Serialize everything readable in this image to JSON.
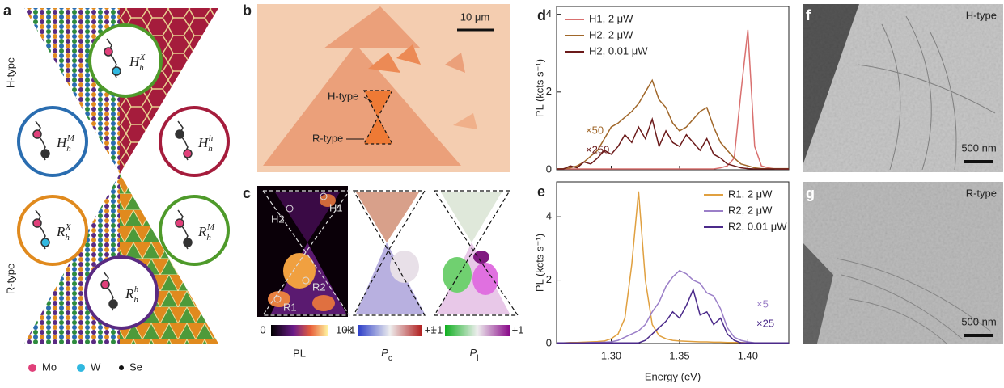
{
  "panel_labels": [
    "a",
    "b",
    "c",
    "d",
    "e",
    "f",
    "g"
  ],
  "panel_a": {
    "side_labels": [
      "H-type",
      "R-type"
    ],
    "stackings": [
      {
        "base": "H",
        "sub": "h",
        "sup": "X"
      },
      {
        "base": "H",
        "sub": "h",
        "sup": "M"
      },
      {
        "base": "H",
        "sub": "h",
        "sup": "h"
      },
      {
        "base": "R",
        "sub": "h",
        "sup": "X"
      },
      {
        "base": "R",
        "sub": "h",
        "sup": "M"
      },
      {
        "base": "R",
        "sub": "h",
        "sup": "h"
      }
    ],
    "legend": [
      "Mo",
      "W",
      "Se"
    ]
  },
  "panel_b": {
    "scale_bar": "10 μm",
    "labels": [
      "H-type",
      "R-type"
    ]
  },
  "panel_c": {
    "point_labels": [
      "H2",
      "H1",
      "R2",
      "R1"
    ],
    "colorbars": [
      {
        "min": "0",
        "max": "10k",
        "label": "PL"
      },
      {
        "min": "−1",
        "max": "+1",
        "label": "P",
        "sub": "c"
      },
      {
        "min": "−1",
        "max": "+1",
        "label": "P",
        "sub": "l"
      }
    ]
  },
  "panel_f": {
    "label": "H-type",
    "scale_bar": "500 nm"
  },
  "panel_g": {
    "label": "R-type",
    "scale_bar": "500 nm"
  },
  "chart_data": [
    {
      "type": "line",
      "ylabel": "PL (kcts s⁻¹)",
      "legend": "upper left",
      "xtick_labels": false,
      "x": [
        1.26,
        1.265,
        1.27,
        1.275,
        1.28,
        1.285,
        1.29,
        1.295,
        1.3,
        1.305,
        1.31,
        1.315,
        1.32,
        1.325,
        1.33,
        1.335,
        1.34,
        1.345,
        1.35,
        1.355,
        1.36,
        1.365,
        1.37,
        1.375,
        1.38,
        1.385,
        1.39,
        1.395,
        1.4,
        1.405,
        1.41,
        1.415,
        1.42,
        1.425,
        1.43
      ],
      "xlim": [
        1.26,
        1.43
      ],
      "xticks": [
        1.3,
        1.35,
        1.4
      ],
      "ylim": [
        0,
        4.2
      ],
      "yticks": [
        0,
        2,
        4
      ],
      "series": [
        {
          "name": "H1, 2 μW",
          "color": "#d9706f",
          "values": [
            0.02,
            0.02,
            0.02,
            0.02,
            0.02,
            0.02,
            0.02,
            0.02,
            0.02,
            0.02,
            0.02,
            0.02,
            0.02,
            0.02,
            0.02,
            0.02,
            0.02,
            0.02,
            0.02,
            0.02,
            0.02,
            0.02,
            0.02,
            0.02,
            0.05,
            0.1,
            0.3,
            2.0,
            3.6,
            0.6,
            0.1,
            0.05,
            0.02,
            0.02,
            0.02
          ]
        },
        {
          "name": "H2, 2 μW",
          "color": "#a0672a",
          "values": [
            0.02,
            0.03,
            0.05,
            0.1,
            0.2,
            0.35,
            0.5,
            0.8,
            1.1,
            1.2,
            1.35,
            1.5,
            1.7,
            2.0,
            2.3,
            1.8,
            1.6,
            1.2,
            1.0,
            1.1,
            1.3,
            1.5,
            1.6,
            1.1,
            0.7,
            0.5,
            0.3,
            0.15,
            0.1,
            0.05,
            0.03,
            0.03,
            0.03,
            0.03,
            0.03
          ]
        },
        {
          "name": "H2, 0.01 μW",
          "color": "#6b1a1a",
          "values": [
            0.02,
            0.02,
            0.1,
            0.05,
            0.2,
            0.15,
            0.3,
            0.5,
            0.4,
            0.6,
            0.9,
            0.7,
            1.1,
            0.8,
            1.3,
            0.6,
            1.0,
            0.7,
            0.6,
            0.9,
            0.7,
            0.5,
            0.8,
            0.4,
            0.3,
            0.15,
            0.1,
            0.05,
            0.03,
            0.02,
            0.02,
            0.02,
            0.02,
            0.02,
            0.02
          ]
        }
      ],
      "annotations": [
        {
          "text": "×50",
          "color": "#a0672a"
        },
        {
          "text": "×250",
          "color": "#6b1a1a"
        }
      ]
    },
    {
      "type": "line",
      "ylabel": "PL (kcts s⁻¹)",
      "xlabel": "Energy (eV)",
      "legend": "upper right",
      "xtick_labels": true,
      "x": [
        1.26,
        1.265,
        1.27,
        1.275,
        1.28,
        1.285,
        1.29,
        1.295,
        1.3,
        1.305,
        1.31,
        1.315,
        1.32,
        1.325,
        1.33,
        1.335,
        1.34,
        1.345,
        1.35,
        1.355,
        1.36,
        1.365,
        1.37,
        1.375,
        1.38,
        1.385,
        1.39,
        1.395,
        1.4,
        1.405,
        1.41,
        1.415,
        1.42,
        1.425,
        1.43
      ],
      "xlim": [
        1.26,
        1.43
      ],
      "xticks": [
        {
          "value": 1.3,
          "label": "1.30"
        },
        {
          "value": 1.35,
          "label": "1.35"
        },
        {
          "value": 1.4,
          "label": "1.40"
        }
      ],
      "ylim": [
        0,
        5.1
      ],
      "yticks": [
        0,
        2,
        4
      ],
      "series": [
        {
          "name": "R1, 2 μW",
          "color": "#e0a040",
          "values": [
            0.02,
            0.02,
            0.03,
            0.03,
            0.04,
            0.05,
            0.06,
            0.08,
            0.15,
            0.3,
            0.8,
            2.5,
            4.8,
            2.0,
            0.6,
            0.25,
            0.15,
            0.1,
            0.08,
            0.07,
            0.06,
            0.05,
            0.05,
            0.04,
            0.04,
            0.03,
            0.03,
            0.03,
            0.02,
            0.02,
            0.02,
            0.02,
            0.02,
            0.02,
            0.02
          ]
        },
        {
          "name": "R2, 2 μW",
          "color": "#9b7fc8",
          "values": [
            0.02,
            0.02,
            0.02,
            0.02,
            0.02,
            0.03,
            0.03,
            0.04,
            0.05,
            0.1,
            0.2,
            0.3,
            0.4,
            0.6,
            1.0,
            1.3,
            1.8,
            2.1,
            2.3,
            2.2,
            2.0,
            1.9,
            1.6,
            1.5,
            1.1,
            0.5,
            0.2,
            0.1,
            0.05,
            0.02,
            0.02,
            0.02,
            0.02,
            0.02,
            0.02
          ]
        },
        {
          "name": "R2, 0.01 μW",
          "color": "#4b2a8a",
          "values": [
            0.02,
            0.02,
            0.02,
            0.02,
            0.02,
            0.02,
            0.02,
            0.02,
            0.02,
            0.02,
            0.02,
            0.02,
            0.02,
            0.1,
            0.3,
            0.5,
            0.7,
            1.0,
            0.8,
            1.2,
            1.7,
            0.9,
            1.0,
            0.6,
            0.8,
            0.3,
            0.1,
            0.02,
            0.02,
            0.02,
            0.02,
            0.02,
            0.02,
            0.02,
            0.02
          ]
        }
      ],
      "annotations": [
        {
          "text": "×5",
          "color": "#9b7fc8"
        },
        {
          "text": "×25",
          "color": "#4b2a8a"
        }
      ]
    }
  ]
}
